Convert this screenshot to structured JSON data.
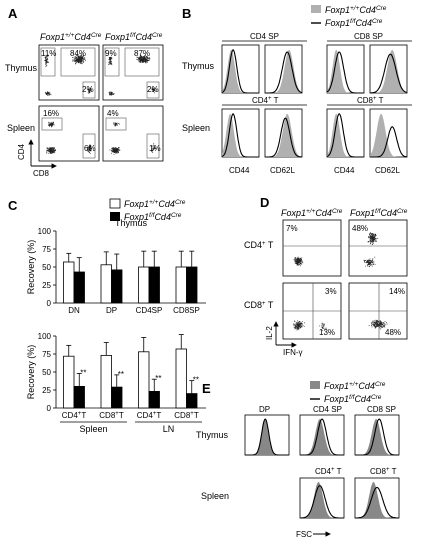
{
  "panels": {
    "A": {
      "letter": "A",
      "header_wt": "Foxp1+/+Cd4Cre",
      "header_ko": "Foxp1f/fCd4Cre",
      "row_thymus": "Thymus",
      "row_spleen": "Spleen",
      "axis_y": "CD4",
      "axis_x": "CD8",
      "thymus_wt": {
        "dp": "84%",
        "dn": "11%",
        "sp8": "2%"
      },
      "thymus_ko": {
        "dp": "87%",
        "dn": "9%",
        "sp8": "2%"
      },
      "spleen_wt": {
        "cd4": "16%",
        "cd8": "6%"
      },
      "spleen_ko": {
        "cd4": "4%",
        "cd8": "1%"
      }
    },
    "B": {
      "letter": "B",
      "legend_wt": "Foxp1+/+Cd4Cre",
      "legend_ko": "Foxp1f/fCd4Cre",
      "row_thymus": "Thymus",
      "row_spleen": "Spleen",
      "col_cd4sp": "CD4 SP",
      "col_cd8sp": "CD8 SP",
      "col_cd4t": "CD4+ T",
      "col_cd8t": "CD8+ T",
      "markers": [
        "CD44",
        "CD62L",
        "CD44",
        "CD62L"
      ]
    },
    "C": {
      "letter": "C",
      "legend_wt": "Foxp1+/+Cd4Cre",
      "legend_ko": "Foxp1f/fCd4Cre",
      "ylabel": "Recovery (%)",
      "spleen_label": "Spleen",
      "ln_label": "LN",
      "sig": "**"
    },
    "D": {
      "letter": "D",
      "header_wt": "Foxp1+/+Cd4Cre",
      "header_ko": "Foxp1f/fCd4Cre",
      "row_cd4": "CD4+ T",
      "row_cd8": "CD8+ T",
      "axis_y": "IL-2",
      "axis_x": "IFN-γ",
      "cd4_wt": "7%",
      "cd4_ko": "48%",
      "cd8_wt_il2": "3%",
      "cd8_wt_ifn": "13%",
      "cd8_ko_il2": "14%",
      "cd8_ko_ifn": "48%"
    },
    "E": {
      "letter": "E",
      "legend_wt": "Foxp1+/+Cd4Cre",
      "legend_ko": "Foxp1f/fCd4Cre",
      "row_thymus": "Thymus",
      "row_spleen": "Spleen",
      "col_dp": "DP",
      "col_cd4sp": "CD4 SP",
      "col_cd8sp": "CD8 SP",
      "col_cd4t": "CD4+ T",
      "col_cd8t": "CD8+ T",
      "axis_x": "FSC"
    }
  },
  "chart_data": [
    {
      "type": "bar",
      "title": "Thymus",
      "xlabel": "",
      "ylabel": "Recovery (%)",
      "ylim": [
        0,
        100
      ],
      "yticks": [
        0,
        25,
        50,
        75,
        100
      ],
      "categories": [
        "DN",
        "DP",
        "CD4SP",
        "CD8SP"
      ],
      "series": [
        {
          "name": "Foxp1+/+Cd4Cre",
          "color": "#ffffff",
          "values": [
            57,
            53,
            50,
            50
          ],
          "error": [
            12,
            18,
            22,
            22
          ]
        },
        {
          "name": "Foxp1f/fCd4Cre",
          "color": "#000000",
          "values": [
            43,
            46,
            50,
            50
          ],
          "error": [
            20,
            22,
            22,
            22
          ]
        }
      ]
    },
    {
      "type": "bar",
      "title": "",
      "xlabel": "",
      "ylabel": "Recovery (%)",
      "ylim": [
        0,
        100
      ],
      "yticks": [
        0,
        25,
        50,
        75,
        100
      ],
      "categories": [
        "CD4+ T",
        "CD8+ T",
        "CD4+ T",
        "CD8+ T"
      ],
      "groups": [
        "Spleen",
        "Spleen",
        "LN",
        "LN"
      ],
      "significance": [
        "**",
        "**",
        "**",
        "**"
      ],
      "series": [
        {
          "name": "Foxp1+/+Cd4Cre",
          "color": "#ffffff",
          "values": [
            72,
            73,
            78,
            82
          ],
          "error": [
            15,
            18,
            20,
            20
          ]
        },
        {
          "name": "Foxp1f/fCd4Cre",
          "color": "#000000",
          "values": [
            30,
            29,
            23,
            20
          ],
          "error": [
            18,
            17,
            17,
            18
          ]
        }
      ]
    }
  ]
}
